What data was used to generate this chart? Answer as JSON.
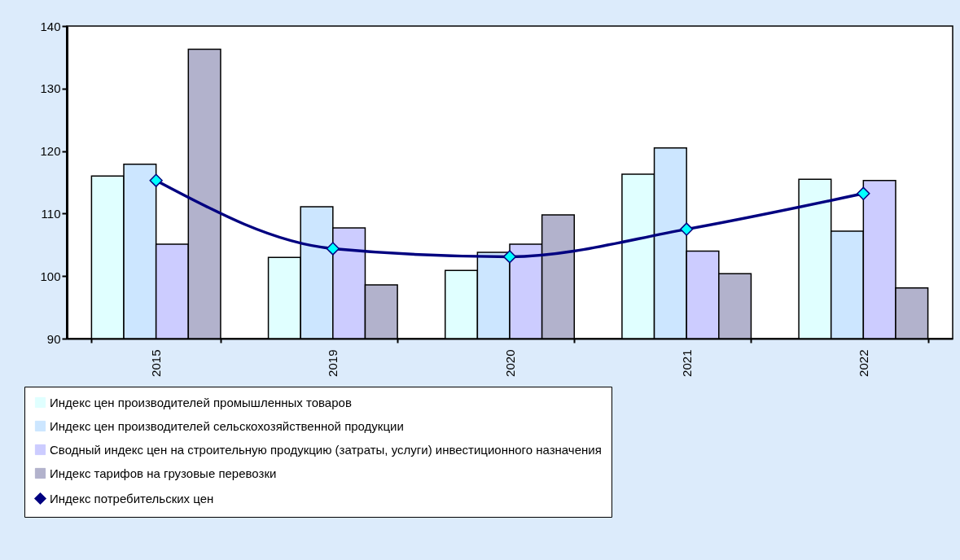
{
  "chart_data": {
    "type": "bar",
    "categories": [
      "2015",
      "2019",
      "2020",
      "2021",
      "2022"
    ],
    "series": [
      {
        "name": "Индекс цен производителей промышленных товаров",
        "color": "#e0ffff",
        "values": [
          116.0,
          103.0,
          100.9,
          116.3,
          115.5
        ]
      },
      {
        "name": "Индекс цен производителей сельскохозяйственной продукции",
        "color": "#cce6ff",
        "values": [
          117.9,
          111.1,
          103.8,
          120.5,
          107.2
        ]
      },
      {
        "name": "Сводный индекс цен на строительную продукцию (затраты, услуги) инвестиционного назначения",
        "color": "#ccccff",
        "values": [
          105.1,
          107.7,
          105.1,
          104.0,
          115.3
        ]
      },
      {
        "name": "Индекс тарифов на грузовые перевозки",
        "color": "#b2b2cc",
        "values": [
          136.3,
          98.6,
          109.8,
          100.4,
          98.1
        ]
      },
      {
        "name": "Индекс потребительских цен",
        "type": "line",
        "color": "#000080",
        "values": [
          115.3,
          104.4,
          103.1,
          107.5,
          113.2
        ]
      }
    ],
    "ylim": [
      90,
      140
    ],
    "yticks": [
      90,
      100,
      110,
      120,
      130,
      140
    ],
    "grid": false,
    "legend": "bottom",
    "marker": "diamond",
    "line_style": "solid"
  }
}
